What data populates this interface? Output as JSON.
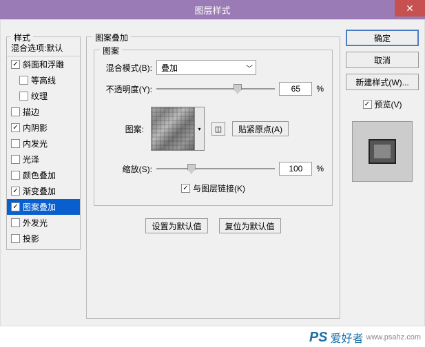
{
  "window": {
    "title": "图层样式",
    "close": "✕"
  },
  "styles": {
    "header": "样式",
    "blend_options": "混合选项:默认",
    "items": [
      {
        "label": "斜面和浮雕",
        "checked": true,
        "indent": false
      },
      {
        "label": "等高线",
        "checked": false,
        "indent": true
      },
      {
        "label": "纹理",
        "checked": false,
        "indent": true
      },
      {
        "label": "描边",
        "checked": false,
        "indent": false
      },
      {
        "label": "内阴影",
        "checked": true,
        "indent": false
      },
      {
        "label": "内发光",
        "checked": false,
        "indent": false
      },
      {
        "label": "光泽",
        "checked": false,
        "indent": false
      },
      {
        "label": "颜色叠加",
        "checked": false,
        "indent": false
      },
      {
        "label": "渐变叠加",
        "checked": true,
        "indent": false
      },
      {
        "label": "图案叠加",
        "checked": true,
        "indent": false,
        "selected": true
      },
      {
        "label": "外发光",
        "checked": false,
        "indent": false
      },
      {
        "label": "投影",
        "checked": false,
        "indent": false
      }
    ]
  },
  "panel": {
    "title": "图案叠加",
    "group": "图案",
    "blend_mode_label": "混合模式(B):",
    "blend_mode_value": "叠加",
    "opacity_label": "不透明度(Y):",
    "opacity_value": "65",
    "opacity_unit": "%",
    "opacity_thumb_pct": 65,
    "pattern_label": "图案:",
    "snap_origin_label": "贴紧原点(A)",
    "scale_label": "缩放(S):",
    "scale_value": "100",
    "scale_unit": "%",
    "scale_thumb_pct": 26,
    "link_label": "与图层链接(K)",
    "link_checked": true,
    "set_default": "设置为默认值",
    "reset_default": "复位为默认值"
  },
  "buttons": {
    "ok": "确定",
    "cancel": "取消",
    "new_style": "新建样式(W)...",
    "preview_label": "预览(V)",
    "preview_checked": true
  },
  "watermark": {
    "ps": "PS",
    "txt": "爱好者",
    "url": "www.psahz.com"
  }
}
